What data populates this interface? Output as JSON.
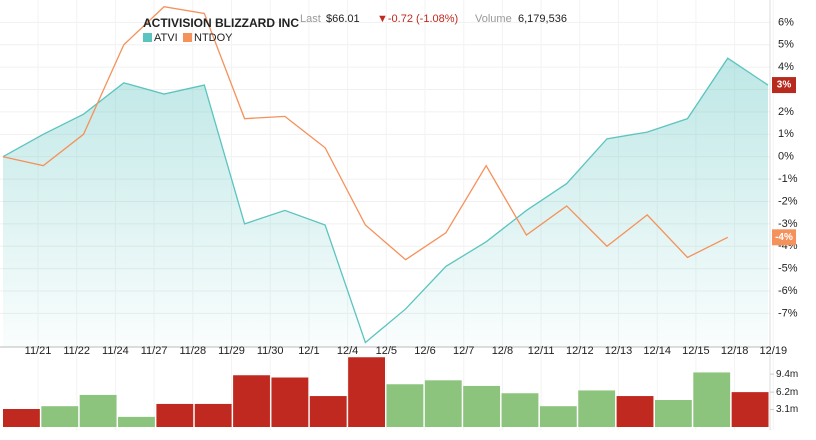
{
  "header": {
    "title": "ACTIVISION BLIZZARD INC",
    "last_label": "Last",
    "last": "$66.01",
    "change": "▼-0.72 (-1.08%)",
    "volume_label": "Volume",
    "volume": "6,179,536"
  },
  "chart_data": {
    "type": "line",
    "categories": [
      "11/21",
      "11/22",
      "11/24",
      "11/27",
      "11/28",
      "11/29",
      "11/30",
      "12/1",
      "12/4",
      "12/5",
      "12/6",
      "12/7",
      "12/8",
      "12/11",
      "12/12",
      "12/13",
      "12/14",
      "12/15",
      "12/18",
      "12/19"
    ],
    "series": [
      {
        "name": "ATVI",
        "color": "#5cc4c0",
        "area": true,
        "values": [
          0,
          1.0,
          1.9,
          3.3,
          2.8,
          3.2,
          -3.0,
          -2.4,
          -3.05,
          -8.3,
          -6.8,
          -4.9,
          -3.8,
          -2.4,
          -1.2,
          0.8,
          1.1,
          1.7,
          4.4,
          3.2
        ],
        "end_label": "3%",
        "end_color": "#b82a1e"
      },
      {
        "name": "NTDOY",
        "color": "#f5915a",
        "values": [
          0,
          -0.4,
          1.0,
          5.0,
          6.7,
          6.4,
          1.7,
          1.8,
          0.4,
          -3.05,
          -4.6,
          -3.4,
          -0.4,
          -3.5,
          -2.2,
          -4.0,
          -2.6,
          -4.5,
          -3.6,
          null
        ],
        "end_label": "-4%",
        "end_color": "#f5915a"
      }
    ],
    "ylim": [
      -8.5,
      7
    ],
    "yticks": [
      {
        "value": 6,
        "label": "6%"
      },
      {
        "value": 5,
        "label": "5%"
      },
      {
        "value": 4,
        "label": "4%"
      },
      {
        "value": 3,
        "label": "3%"
      },
      {
        "value": 2,
        "label": "2%"
      },
      {
        "value": 1,
        "label": "1%"
      },
      {
        "value": 0,
        "label": "0%"
      },
      {
        "value": -1,
        "label": "-1%"
      },
      {
        "value": -2,
        "label": "-2%"
      },
      {
        "value": -3,
        "label": "-3%"
      },
      {
        "value": -4,
        "label": "-4%"
      },
      {
        "value": -5,
        "label": "-5%"
      },
      {
        "value": -6,
        "label": "-6%"
      },
      {
        "value": -7,
        "label": "-7%"
      }
    ],
    "grid": true,
    "volume": {
      "values": [
        3.2,
        3.7,
        5.7,
        1.8,
        4.1,
        4.1,
        9.2,
        8.8,
        5.5,
        12.4,
        7.6,
        8.3,
        7.3,
        6.0,
        3.7,
        6.5,
        5.5,
        4.8,
        9.7,
        6.2
      ],
      "colors": [
        "#c0291f",
        "#8cc47e",
        "#8cc47e",
        "#8cc47e",
        "#c0291f",
        "#c0291f",
        "#c0291f",
        "#c0291f",
        "#c0291f",
        "#c0291f",
        "#8cc47e",
        "#8cc47e",
        "#8cc47e",
        "#8cc47e",
        "#8cc47e",
        "#8cc47e",
        "#c0291f",
        "#8cc47e",
        "#8cc47e",
        "#c0291f"
      ],
      "ylim": [
        0,
        12.8
      ],
      "yticks": [
        {
          "value": 9.4,
          "label": "9.4m"
        },
        {
          "value": 6.2,
          "label": "6.2m"
        },
        {
          "value": 3.1,
          "label": "3.1m"
        }
      ]
    }
  }
}
